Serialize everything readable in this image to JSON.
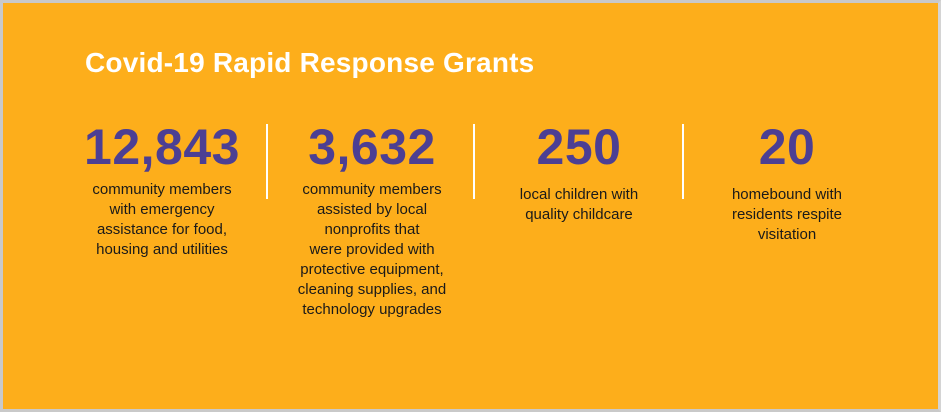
{
  "title": "Covid-19 Rapid Response Grants",
  "stats": [
    {
      "value": "12,843",
      "lines": [
        "community members",
        "with emergency",
        "assistance for food,",
        "housing and utilities"
      ]
    },
    {
      "value": "3,632",
      "lines": [
        "community members",
        "assisted by local",
        "nonprofits that",
        "were provided with",
        "protective equipment,",
        "cleaning supplies, and",
        "technology upgrades"
      ]
    },
    {
      "value": "250",
      "lines": [
        "local children with",
        "quality childcare"
      ]
    },
    {
      "value": "20",
      "lines": [
        "homebound with",
        "residents respite",
        "visitation"
      ]
    }
  ],
  "colors": {
    "background": "#fdae1b",
    "number": "#4c3f93",
    "title": "#ffffff",
    "text": "#1a1a1a"
  }
}
